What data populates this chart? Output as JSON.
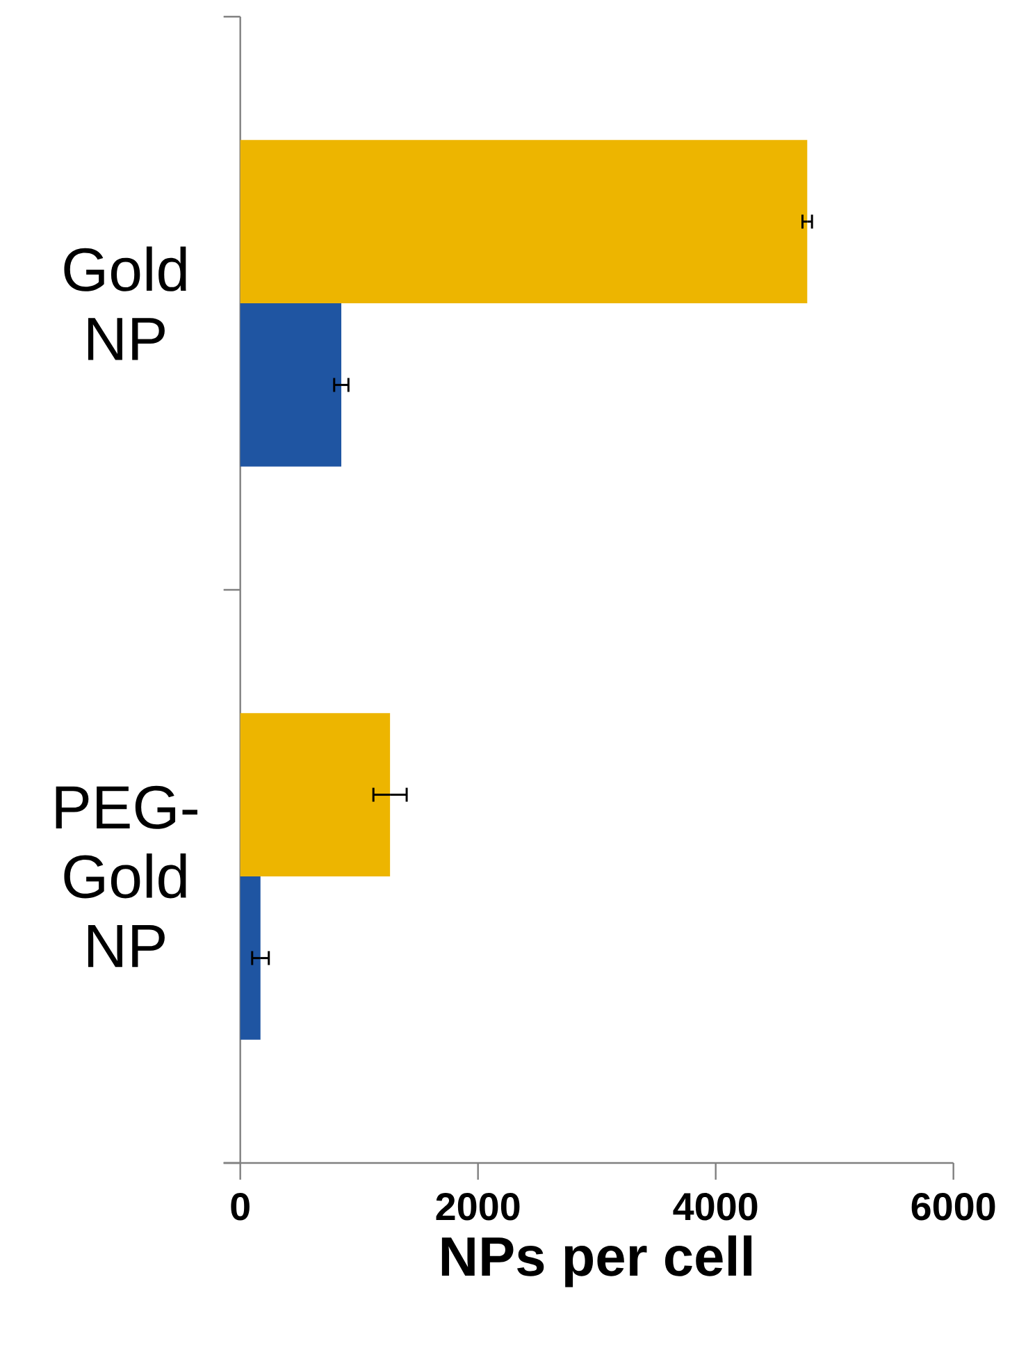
{
  "chart_data": {
    "type": "bar",
    "orientation": "horizontal",
    "xlabel": "NPs per cell",
    "categories": [
      "Gold NP",
      "PEG-Gold NP"
    ],
    "series": [
      {
        "color": "#edb500",
        "values": [
          4770,
          1260
        ],
        "errors": [
          40,
          140
        ]
      },
      {
        "color": "#1f55a2",
        "values": [
          850,
          170
        ],
        "errors": [
          60,
          70
        ]
      }
    ],
    "xlim": [
      0,
      6000
    ],
    "xticks": [
      0,
      2000,
      4000,
      6000
    ],
    "grid": false
  }
}
